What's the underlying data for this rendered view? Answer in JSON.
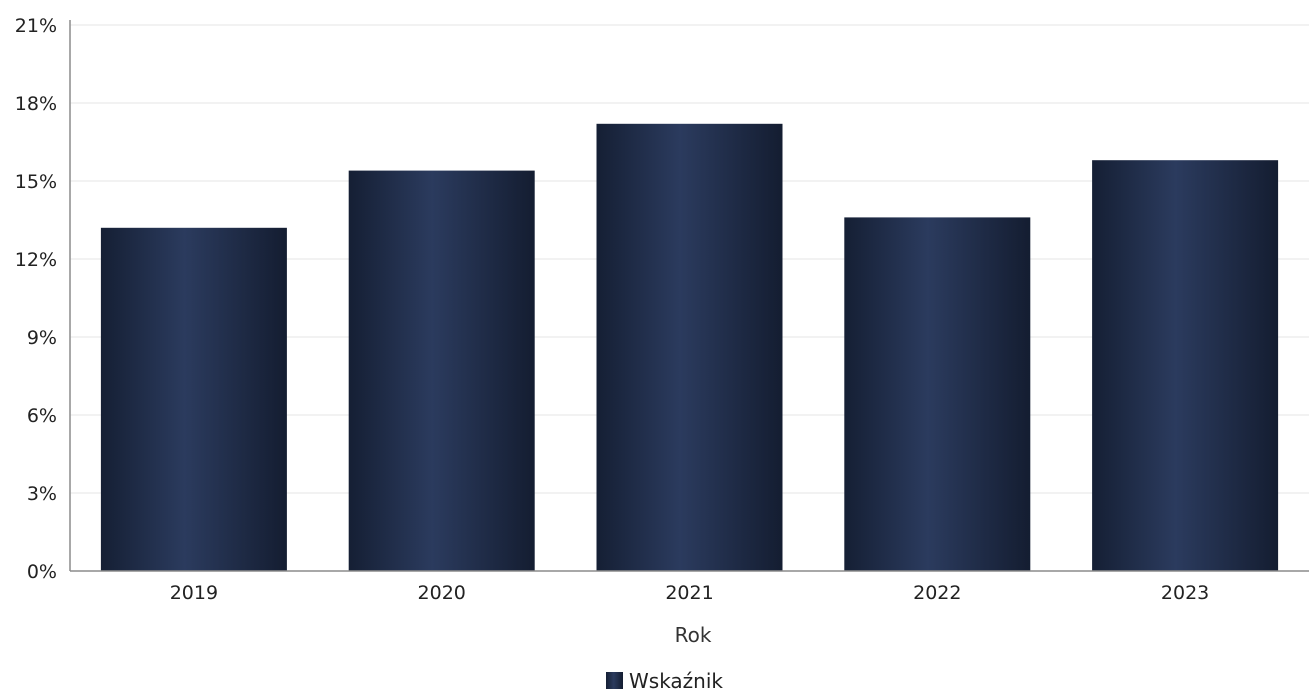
{
  "chart_data": {
    "type": "bar",
    "categories": [
      "2019",
      "2020",
      "2021",
      "2022",
      "2023"
    ],
    "series": [
      {
        "name": "Wskaźnik",
        "values": [
          13.2,
          15.4,
          17.2,
          13.6,
          15.8
        ],
        "color": "#1f2d4a"
      }
    ],
    "xlabel": "Rok",
    "ylabel": "",
    "ylim": [
      0,
      21
    ],
    "yticks": [
      "0%",
      "3%",
      "6%",
      "9%",
      "12%",
      "15%",
      "18%",
      "21%"
    ],
    "grid": true,
    "legend_position": "bottom-center"
  },
  "colors": {
    "bar": "#1f2d4a",
    "grid": "#e6e6e6",
    "axis": "#8c8c8c"
  }
}
